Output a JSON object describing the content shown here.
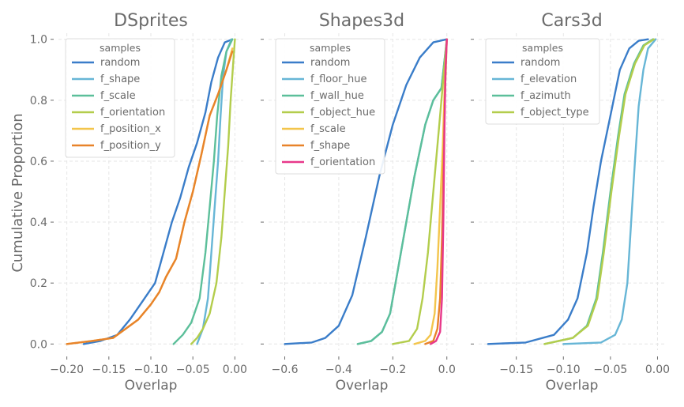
{
  "figure": {
    "ylabel": "Cumulative Proportion",
    "legend_title": "samples",
    "text_color": "#6b6b6b",
    "grid_color": "#e6e6e6"
  },
  "chart_data": [
    {
      "type": "line",
      "title": "DSprites",
      "xlabel": "Overlap",
      "ylabel": "Cumulative Proportion",
      "xlim": [
        -0.21,
        0.01
      ],
      "ylim": [
        -0.02,
        1.02
      ],
      "xticks": [
        -0.2,
        -0.15,
        -0.1,
        -0.05,
        0.0
      ],
      "xtick_labels": [
        "−0.20",
        "−0.15",
        "−0.10",
        "−0.05",
        "0.00"
      ],
      "yticks": [
        0.0,
        0.2,
        0.4,
        0.6,
        0.8,
        1.0
      ],
      "ytick_labels": [
        "0.0",
        "0.2",
        "0.4",
        "0.6",
        "0.8",
        "1.0"
      ],
      "grid": true,
      "legend_position": "upper-left",
      "legend_title": "samples",
      "series": [
        {
          "name": "random",
          "color": "#3a7dc9",
          "points": [
            [
              -0.18,
              0.0
            ],
            [
              -0.16,
              0.01
            ],
            [
              -0.14,
              0.03
            ],
            [
              -0.125,
              0.08
            ],
            [
              -0.11,
              0.14
            ],
            [
              -0.095,
              0.2
            ],
            [
              -0.085,
              0.3
            ],
            [
              -0.075,
              0.4
            ],
            [
              -0.065,
              0.48
            ],
            [
              -0.055,
              0.58
            ],
            [
              -0.045,
              0.66
            ],
            [
              -0.035,
              0.76
            ],
            [
              -0.028,
              0.86
            ],
            [
              -0.02,
              0.94
            ],
            [
              -0.012,
              0.99
            ],
            [
              -0.003,
              1.0
            ]
          ]
        },
        {
          "name": "f_shape",
          "color": "#67b6d6",
          "points": [
            [
              -0.045,
              0.0
            ],
            [
              -0.038,
              0.05
            ],
            [
              -0.032,
              0.15
            ],
            [
              -0.028,
              0.3
            ],
            [
              -0.024,
              0.45
            ],
            [
              -0.02,
              0.6
            ],
            [
              -0.017,
              0.75
            ],
            [
              -0.014,
              0.88
            ],
            [
              -0.01,
              0.96
            ],
            [
              -0.004,
              1.0
            ]
          ]
        },
        {
          "name": "f_scale",
          "color": "#5cbf9a",
          "points": [
            [
              -0.073,
              0.0
            ],
            [
              -0.062,
              0.03
            ],
            [
              -0.052,
              0.07
            ],
            [
              -0.042,
              0.15
            ],
            [
              -0.035,
              0.3
            ],
            [
              -0.03,
              0.45
            ],
            [
              -0.025,
              0.6
            ],
            [
              -0.021,
              0.75
            ],
            [
              -0.016,
              0.88
            ],
            [
              -0.01,
              0.96
            ],
            [
              -0.003,
              1.0
            ]
          ]
        },
        {
          "name": "f_orientation",
          "color": "#b3cd4c",
          "points": [
            [
              -0.052,
              0.0
            ],
            [
              -0.045,
              0.02
            ],
            [
              -0.038,
              0.05
            ],
            [
              -0.03,
              0.1
            ],
            [
              -0.022,
              0.2
            ],
            [
              -0.016,
              0.35
            ],
            [
              -0.012,
              0.5
            ],
            [
              -0.008,
              0.65
            ],
            [
              -0.005,
              0.8
            ],
            [
              -0.002,
              0.92
            ],
            [
              0.0,
              1.0
            ]
          ]
        },
        {
          "name": "f_position_x",
          "color": "#f3c54c",
          "points": [
            [
              -0.2,
              0.0
            ],
            [
              -0.17,
              0.01
            ],
            [
              -0.145,
              0.02
            ],
            [
              -0.13,
              0.05
            ],
            [
              -0.115,
              0.08
            ],
            [
              -0.1,
              0.13
            ],
            [
              -0.09,
              0.17
            ],
            [
              -0.082,
              0.22
            ],
            [
              -0.07,
              0.28
            ],
            [
              -0.06,
              0.4
            ],
            [
              -0.05,
              0.5
            ],
            [
              -0.04,
              0.62
            ],
            [
              -0.03,
              0.75
            ],
            [
              -0.02,
              0.82
            ],
            [
              -0.01,
              0.9
            ],
            [
              -0.003,
              0.97
            ]
          ]
        },
        {
          "name": "f_position_y",
          "color": "#e8832a",
          "points": [
            [
              -0.2,
              0.0
            ],
            [
              -0.17,
              0.01
            ],
            [
              -0.145,
              0.02
            ],
            [
              -0.13,
              0.05
            ],
            [
              -0.115,
              0.08
            ],
            [
              -0.1,
              0.13
            ],
            [
              -0.09,
              0.17
            ],
            [
              -0.082,
              0.22
            ],
            [
              -0.07,
              0.28
            ],
            [
              -0.06,
              0.4
            ],
            [
              -0.05,
              0.5
            ],
            [
              -0.04,
              0.62
            ],
            [
              -0.03,
              0.75
            ],
            [
              -0.02,
              0.82
            ],
            [
              -0.01,
              0.9
            ],
            [
              -0.003,
              0.96
            ]
          ]
        }
      ]
    },
    {
      "type": "line",
      "title": "Shapes3d",
      "xlabel": "Overlap",
      "xlim": [
        -0.66,
        0.03
      ],
      "ylim": [
        -0.02,
        1.02
      ],
      "xticks": [
        -0.6,
        -0.4,
        -0.2,
        0.0
      ],
      "xtick_labels": [
        "−0.6",
        "−0.4",
        "−0.2",
        "0.0"
      ],
      "yticks": [
        0.0,
        0.2,
        0.4,
        0.6,
        0.8,
        1.0
      ],
      "grid": true,
      "legend_position": "upper-left",
      "legend_title": "samples",
      "series": [
        {
          "name": "random",
          "color": "#3a7dc9",
          "points": [
            [
              -0.6,
              0.0
            ],
            [
              -0.5,
              0.005
            ],
            [
              -0.45,
              0.02
            ],
            [
              -0.4,
              0.06
            ],
            [
              -0.35,
              0.16
            ],
            [
              -0.3,
              0.35
            ],
            [
              -0.25,
              0.55
            ],
            [
              -0.2,
              0.72
            ],
            [
              -0.15,
              0.85
            ],
            [
              -0.1,
              0.94
            ],
            [
              -0.05,
              0.99
            ],
            [
              0.0,
              1.0
            ]
          ]
        },
        {
          "name": "f_floor_hue",
          "color": "#67b6d6",
          "points": [
            [
              -0.33,
              0.0
            ],
            [
              -0.28,
              0.01
            ],
            [
              -0.24,
              0.04
            ],
            [
              -0.21,
              0.1
            ],
            [
              -0.18,
              0.25
            ],
            [
              -0.15,
              0.4
            ],
            [
              -0.12,
              0.55
            ],
            [
              -0.08,
              0.72
            ],
            [
              -0.05,
              0.8
            ],
            [
              -0.02,
              0.84
            ],
            [
              0.0,
              1.0
            ]
          ]
        },
        {
          "name": "f_wall_hue",
          "color": "#5cbf9a",
          "points": [
            [
              -0.33,
              0.0
            ],
            [
              -0.28,
              0.01
            ],
            [
              -0.24,
              0.04
            ],
            [
              -0.21,
              0.1
            ],
            [
              -0.18,
              0.25
            ],
            [
              -0.15,
              0.4
            ],
            [
              -0.12,
              0.55
            ],
            [
              -0.08,
              0.72
            ],
            [
              -0.05,
              0.8
            ],
            [
              -0.02,
              0.84
            ],
            [
              0.0,
              1.0
            ]
          ]
        },
        {
          "name": "f_object_hue",
          "color": "#b3cd4c",
          "points": [
            [
              -0.2,
              0.0
            ],
            [
              -0.14,
              0.01
            ],
            [
              -0.11,
              0.05
            ],
            [
              -0.09,
              0.15
            ],
            [
              -0.07,
              0.3
            ],
            [
              -0.05,
              0.5
            ],
            [
              -0.03,
              0.7
            ],
            [
              -0.015,
              0.85
            ],
            [
              0.0,
              1.0
            ]
          ]
        },
        {
          "name": "f_scale",
          "color": "#f3c54c",
          "points": [
            [
              -0.12,
              0.0
            ],
            [
              -0.08,
              0.01
            ],
            [
              -0.06,
              0.03
            ],
            [
              -0.045,
              0.1
            ],
            [
              -0.035,
              0.25
            ],
            [
              -0.025,
              0.45
            ],
            [
              -0.015,
              0.65
            ],
            [
              -0.008,
              0.85
            ],
            [
              0.0,
              1.0
            ]
          ]
        },
        {
          "name": "f_shape",
          "color": "#e8832a",
          "points": [
            [
              -0.08,
              0.0
            ],
            [
              -0.05,
              0.01
            ],
            [
              -0.035,
              0.05
            ],
            [
              -0.025,
              0.15
            ],
            [
              -0.018,
              0.35
            ],
            [
              -0.012,
              0.6
            ],
            [
              -0.006,
              0.85
            ],
            [
              0.0,
              1.0
            ]
          ]
        },
        {
          "name": "f_orientation",
          "color": "#e8388a",
          "points": [
            [
              -0.06,
              0.0
            ],
            [
              -0.04,
              0.01
            ],
            [
              -0.025,
              0.04
            ],
            [
              -0.018,
              0.15
            ],
            [
              -0.013,
              0.4
            ],
            [
              -0.009,
              0.7
            ],
            [
              -0.005,
              0.9
            ],
            [
              0.0,
              1.0
            ]
          ]
        }
      ]
    },
    {
      "type": "line",
      "title": "Cars3d",
      "xlabel": "Overlap",
      "xlim": [
        -0.19,
        0.008
      ],
      "ylim": [
        -0.02,
        1.02
      ],
      "xticks": [
        -0.15,
        -0.1,
        -0.05,
        0.0
      ],
      "xtick_labels": [
        "−0.15",
        "−0.10",
        "−0.05",
        "0.00"
      ],
      "yticks": [
        0.0,
        0.2,
        0.4,
        0.6,
        0.8,
        1.0
      ],
      "grid": true,
      "legend_position": "upper-left",
      "legend_title": "samples",
      "series": [
        {
          "name": "random",
          "color": "#3a7dc9",
          "points": [
            [
              -0.18,
              0.0
            ],
            [
              -0.14,
              0.005
            ],
            [
              -0.11,
              0.03
            ],
            [
              -0.095,
              0.08
            ],
            [
              -0.085,
              0.15
            ],
            [
              -0.075,
              0.3
            ],
            [
              -0.068,
              0.45
            ],
            [
              -0.06,
              0.6
            ],
            [
              -0.05,
              0.75
            ],
            [
              -0.04,
              0.9
            ],
            [
              -0.03,
              0.97
            ],
            [
              -0.02,
              0.995
            ],
            [
              -0.01,
              1.0
            ]
          ]
        },
        {
          "name": "f_elevation",
          "color": "#67b6d6",
          "points": [
            [
              -0.1,
              0.0
            ],
            [
              -0.06,
              0.005
            ],
            [
              -0.045,
              0.03
            ],
            [
              -0.038,
              0.08
            ],
            [
              -0.032,
              0.2
            ],
            [
              -0.028,
              0.4
            ],
            [
              -0.024,
              0.6
            ],
            [
              -0.02,
              0.78
            ],
            [
              -0.015,
              0.9
            ],
            [
              -0.01,
              0.97
            ],
            [
              -0.002,
              1.0
            ]
          ]
        },
        {
          "name": "f_azimuth",
          "color": "#5cbf9a",
          "points": [
            [
              -0.12,
              0.0
            ],
            [
              -0.09,
              0.02
            ],
            [
              -0.075,
              0.06
            ],
            [
              -0.065,
              0.15
            ],
            [
              -0.058,
              0.3
            ],
            [
              -0.05,
              0.5
            ],
            [
              -0.042,
              0.68
            ],
            [
              -0.035,
              0.82
            ],
            [
              -0.025,
              0.92
            ],
            [
              -0.015,
              0.98
            ],
            [
              -0.005,
              1.0
            ]
          ]
        },
        {
          "name": "f_object_type",
          "color": "#b3cd4c",
          "points": [
            [
              -0.12,
              0.0
            ],
            [
              -0.09,
              0.02
            ],
            [
              -0.074,
              0.06
            ],
            [
              -0.064,
              0.15
            ],
            [
              -0.057,
              0.3
            ],
            [
              -0.049,
              0.5
            ],
            [
              -0.041,
              0.68
            ],
            [
              -0.034,
              0.82
            ],
            [
              -0.024,
              0.92
            ],
            [
              -0.014,
              0.98
            ],
            [
              -0.004,
              1.0
            ]
          ]
        }
      ]
    }
  ]
}
